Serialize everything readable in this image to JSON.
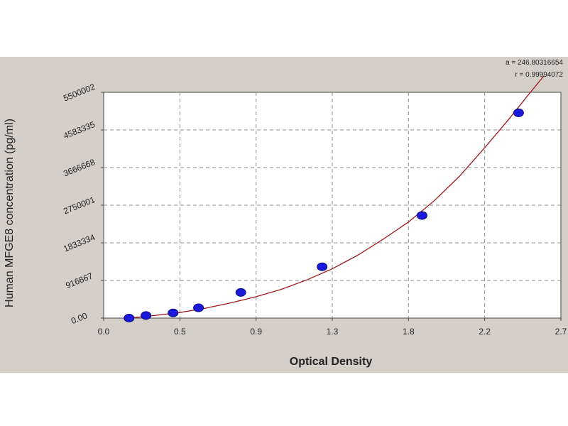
{
  "chart_data": {
    "type": "scatter",
    "title": "",
    "xlabel": "Optical Density",
    "ylabel": "Human MFGE8 concentration (pg/ml)",
    "xlim": [
      0.0,
      2.7
    ],
    "ylim": [
      0.0,
      5500002
    ],
    "x_ticks": [
      "0.0",
      "0.5",
      "0.9",
      "1.3",
      "1.8",
      "2.2",
      "2.7"
    ],
    "x_tick_values": [
      0.0,
      0.45,
      0.9,
      1.35,
      1.8,
      2.25,
      2.7
    ],
    "y_ticks": [
      "0.00",
      "916667",
      "1833334",
      "2750001",
      "3666668",
      "4583335",
      "5500002"
    ],
    "y_tick_values": [
      0,
      916667,
      1833334,
      2750001,
      3666668,
      4583335,
      5500002
    ],
    "grid": true,
    "annotations": [
      "a = 246.80316654",
      "r = 0.99994072"
    ],
    "series": [
      {
        "points": [
          {
            "x": 0.15,
            "y": 0
          },
          {
            "x": 0.25,
            "y": 62500
          },
          {
            "x": 0.41,
            "y": 125000
          },
          {
            "x": 0.56,
            "y": 250000
          },
          {
            "x": 0.81,
            "y": 625000
          },
          {
            "x": 1.29,
            "y": 1250000
          },
          {
            "x": 1.88,
            "y": 2500000
          },
          {
            "x": 2.45,
            "y": 5000000
          }
        ],
        "fit": {
          "x": [
            0.15,
            0.3,
            0.45,
            0.6,
            0.75,
            0.9,
            1.05,
            1.2,
            1.35,
            1.5,
            1.65,
            1.8,
            1.95,
            2.1,
            2.25,
            2.4,
            2.5,
            2.6
          ],
          "y": [
            0,
            62000,
            135000,
            240000,
            370000,
            520000,
            700000,
            930000,
            1200000,
            1530000,
            1920000,
            2340000,
            2850000,
            3450000,
            4150000,
            4880000,
            5400000,
            5900000
          ]
        }
      }
    ]
  }
}
